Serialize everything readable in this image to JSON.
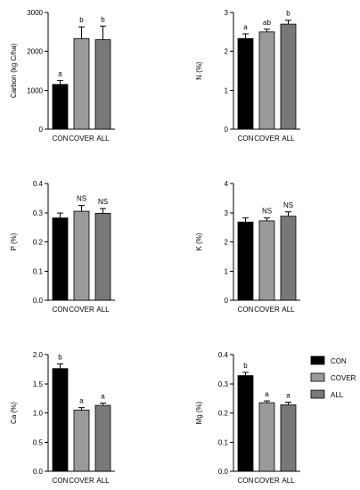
{
  "legend": [
    {
      "label": "CON",
      "color": "#000000"
    },
    {
      "label": "COVER",
      "color": "#9a9a9a"
    },
    {
      "label": "ALL",
      "color": "#787878"
    }
  ],
  "chart_data": [
    {
      "type": "bar",
      "ylabel": "Carbon (kg C/ha)",
      "ylim": [
        0,
        3000
      ],
      "yticks": [
        "0",
        "1000",
        "2000",
        "3000"
      ],
      "categories": [
        "CON",
        "COVER",
        "ALL"
      ],
      "values": [
        1150,
        2330,
        2300
      ],
      "errors": [
        100,
        300,
        350
      ],
      "letters": [
        "a",
        "b",
        "b"
      ]
    },
    {
      "type": "bar",
      "ylabel": "N (%)",
      "ylim": [
        0,
        3
      ],
      "yticks": [
        "0",
        "1",
        "2",
        "3"
      ],
      "categories": [
        "CON",
        "COVER",
        "ALL"
      ],
      "values": [
        2.33,
        2.5,
        2.7
      ],
      "errors": [
        0.12,
        0.07,
        0.1
      ],
      "letters": [
        "a",
        "ab",
        "b"
      ]
    },
    {
      "type": "bar",
      "ylabel": "P (%)",
      "ylim": [
        0,
        0.4
      ],
      "yticks": [
        "0.0",
        "0.1",
        "0.2",
        "0.3",
        "0.4"
      ],
      "categories": [
        "CON",
        "COVER",
        "ALL"
      ],
      "values": [
        0.282,
        0.305,
        0.298
      ],
      "errors": [
        0.017,
        0.02,
        0.016
      ],
      "letters": [
        "",
        "NS",
        "NS"
      ]
    },
    {
      "type": "bar",
      "ylabel": "K (%)",
      "ylim": [
        0,
        4
      ],
      "yticks": [
        "0",
        "1",
        "2",
        "3",
        "4"
      ],
      "categories": [
        "CON",
        "COVER",
        "ALL"
      ],
      "values": [
        2.68,
        2.72,
        2.88
      ],
      "errors": [
        0.14,
        0.1,
        0.15
      ],
      "letters": [
        "",
        "NS",
        "NS"
      ]
    },
    {
      "type": "bar",
      "ylabel": "Ca (%)",
      "ylim": [
        0,
        2.0
      ],
      "yticks": [
        "0.0",
        "0.5",
        "1.0",
        "1.5",
        "2.0"
      ],
      "categories": [
        "CON",
        "COVER",
        "ALL"
      ],
      "values": [
        1.76,
        1.05,
        1.13
      ],
      "errors": [
        0.08,
        0.04,
        0.04
      ],
      "letters": [
        "b",
        "a",
        "a"
      ]
    },
    {
      "type": "bar",
      "ylabel": "Mg (%)",
      "ylim": [
        0,
        0.4
      ],
      "yticks": [
        "0.0",
        "0.1",
        "0.2",
        "0.3",
        "0.4"
      ],
      "categories": [
        "CON",
        "COVER",
        "ALL"
      ],
      "values": [
        0.328,
        0.235,
        0.228
      ],
      "errors": [
        0.011,
        0.006,
        0.009
      ],
      "letters": [
        "b",
        "a",
        "a"
      ]
    }
  ]
}
